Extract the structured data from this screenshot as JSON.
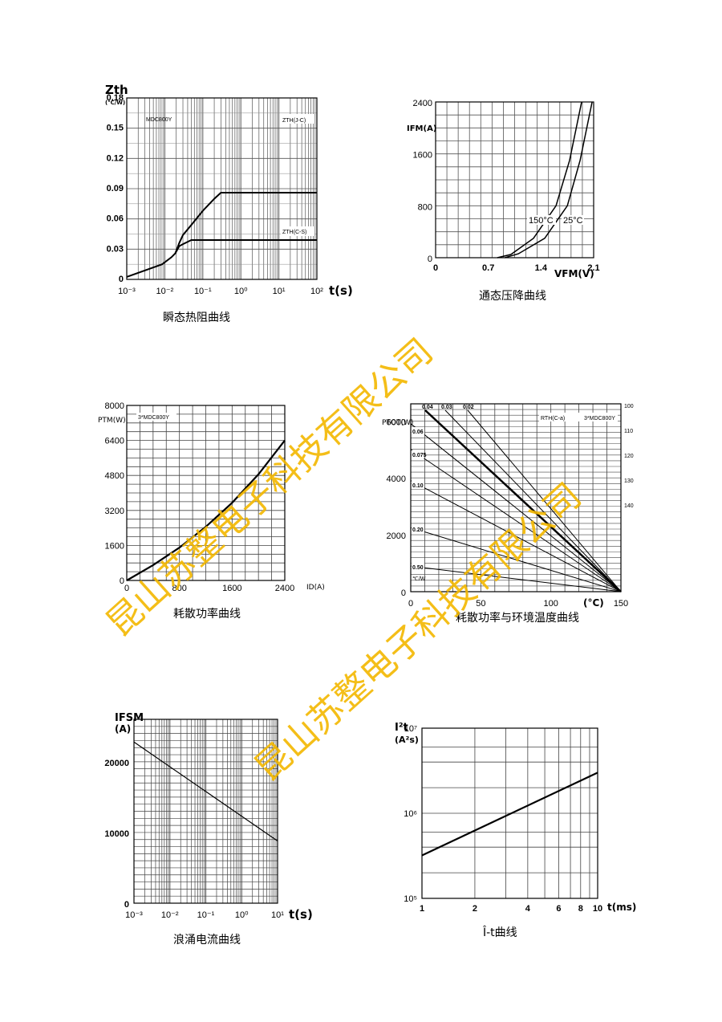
{
  "watermark": "昆山苏整电子科技有限公司",
  "watermark_color": "#f3b800",
  "chart_data": [
    {
      "id": "zth",
      "type": "line",
      "caption": "瞬态热阻曲线",
      "y_title": "Zth",
      "y_unit": "(℃/W)",
      "xlabel": "t(s)",
      "x_scale": "log",
      "xlim": [
        0.001,
        100
      ],
      "ylim": [
        0,
        0.18
      ],
      "x_ticks": [
        "10⁻³",
        "10⁻²",
        "10⁻¹",
        "10⁰",
        "10¹",
        "10²"
      ],
      "y_ticks": [
        "0",
        "0.03",
        "0.06",
        "0.09",
        "0.12",
        "0.15",
        "0.18"
      ],
      "model_label": "MDC800Y",
      "series": [
        {
          "name": "ZTH(J-C)",
          "x": [
            0.001,
            0.0085,
            0.015,
            0.019,
            0.024,
            0.03,
            0.05,
            0.1,
            0.2,
            0.3,
            100
          ],
          "y": [
            0.0025,
            0.015,
            0.022,
            0.026,
            0.036,
            0.044,
            0.054,
            0.068,
            0.08,
            0.086,
            0.086
          ]
        },
        {
          "name": "ZTH(C-S)",
          "x": [
            0.019,
            0.024,
            0.03,
            0.05,
            100
          ],
          "y": [
            0.026,
            0.033,
            0.035,
            0.039,
            0.039
          ]
        }
      ]
    },
    {
      "id": "vfm",
      "type": "line",
      "caption": "通态压降曲线",
      "ylabel": "IFM(A)",
      "xlabel": "VFM(V)",
      "xlim": [
        0,
        2.1
      ],
      "ylim": [
        0,
        2400
      ],
      "x_ticks": [
        "0",
        "0.7",
        "1.4",
        "2.1"
      ],
      "y_ticks": [
        "0",
        "800",
        "1600",
        "2400"
      ],
      "series": [
        {
          "name": "150°C",
          "x": [
            0.82,
            1.0,
            1.3,
            1.6,
            1.78,
            1.94
          ],
          "y": [
            0,
            50,
            300,
            800,
            1500,
            2400
          ]
        },
        {
          "name": "25°C",
          "x": [
            0.92,
            1.1,
            1.45,
            1.75,
            1.92,
            2.08
          ],
          "y": [
            0,
            60,
            300,
            800,
            1500,
            2400
          ]
        }
      ],
      "annotations": [
        "150°C",
        "25°C"
      ]
    },
    {
      "id": "ptm",
      "type": "line",
      "caption": "耗散功率曲线",
      "ylabel": "PTM(W)",
      "xlabel": "ID(A)",
      "xlim": [
        0,
        2400
      ],
      "ylim": [
        0,
        8000
      ],
      "x_ticks": [
        "0",
        "800",
        "1600",
        "2400"
      ],
      "y_ticks": [
        "0",
        "1600",
        "3200",
        "4800",
        "6400",
        "8000"
      ],
      "model_label": "3*MDC800Y",
      "series": [
        {
          "name": "",
          "x": [
            0,
            400,
            800,
            1200,
            1600,
            2000,
            2400
          ],
          "y": [
            0,
            700,
            1500,
            2450,
            3550,
            4850,
            6400
          ]
        }
      ]
    },
    {
      "id": "ptot",
      "type": "line",
      "caption": "耗散功率与环境温度曲线",
      "ylabel": "PTOT(W)",
      "xlabel": "(°C)",
      "xlim": [
        0,
        150
      ],
      "ylim": [
        0,
        6600
      ],
      "x_ticks": [
        "0",
        "50",
        "100",
        "150"
      ],
      "y_ticks": [
        "0",
        "2000",
        "4000",
        "6000"
      ],
      "model_label": "3*MDC800Y",
      "rth_label": "RTH(C-a)",
      "rth_values": [
        "0.04",
        "0.03",
        "0.02",
        "0.06",
        "0.075",
        "0.10",
        "0.20",
        "0.50"
      ],
      "right_ticks": [
        "100",
        "110",
        "120",
        "130",
        "140"
      ],
      "series": [
        {
          "name": "0.04",
          "start_y": 6560
        },
        {
          "name": "0.03",
          "start_y": 6560
        },
        {
          "name": "0.02",
          "start_y": 6560
        },
        {
          "name": "0.06",
          "start_y": 5900
        },
        {
          "name": "0.075",
          "start_y": 5000
        },
        {
          "name": "0.10",
          "start_y": 3900
        },
        {
          "name": "0.20",
          "start_y": 2250
        },
        {
          "name": "0.50",
          "start_y": 900
        }
      ],
      "converge_x": 150
    },
    {
      "id": "ifsm",
      "type": "line",
      "caption": "浪涌电流曲线",
      "y_title": "IFSM",
      "y_unit": "(A)",
      "xlabel": "t(s)",
      "x_scale": "log",
      "xlim": [
        0.001,
        10
      ],
      "ylim": [
        0,
        26000
      ],
      "x_ticks": [
        "10⁻³",
        "10⁻²",
        "10⁻¹",
        "10⁰",
        "10¹"
      ],
      "y_ticks": [
        "0",
        "10000",
        "20000"
      ],
      "series": [
        {
          "name": "",
          "x": [
            0.001,
            10
          ],
          "y": [
            22800,
            8800
          ]
        }
      ]
    },
    {
      "id": "i2t",
      "type": "line",
      "caption": "Î-t曲线",
      "y_title": "I²t",
      "y_unit": "(A²s)",
      "xlabel": "t(ms)",
      "x_scale": "log",
      "y_scale": "log",
      "xlim": [
        1,
        10
      ],
      "ylim": [
        100000,
        10000000
      ],
      "x_ticks": [
        "1",
        "2",
        "4",
        "6",
        "8",
        "10"
      ],
      "y_ticks": [
        "10⁵",
        "10⁶",
        "10⁷"
      ],
      "series": [
        {
          "name": "",
          "x": [
            1,
            10
          ],
          "y": [
            320000,
            3000000
          ]
        }
      ]
    }
  ]
}
